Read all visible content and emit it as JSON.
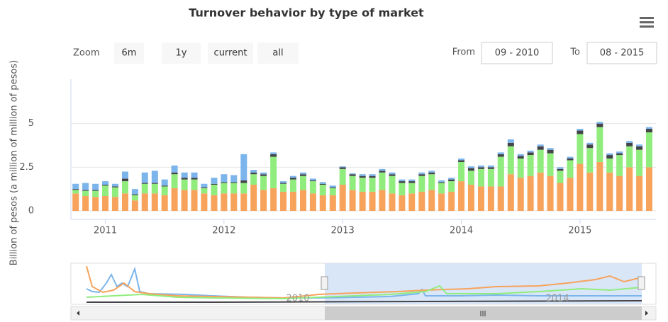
{
  "chart_data": {
    "type": "stacked_bar",
    "title": "Turnover behavior by type of market",
    "y_label": "Billion of pesos (a million of million of pesos)",
    "zoom_label": "Zoom",
    "zoom_buttons": [
      "6m",
      "1y",
      "current",
      "all"
    ],
    "from_label": "From",
    "from_value": "09 - 2010",
    "to_label": "To",
    "to_value": "08 - 2015",
    "navigator_labels": [
      "2010",
      "2014"
    ],
    "x": [
      2010.75,
      2010.833,
      2010.917,
      2011.0,
      2011.083,
      2011.167,
      2011.25,
      2011.333,
      2011.417,
      2011.5,
      2011.583,
      2011.667,
      2011.75,
      2011.833,
      2011.917,
      2012.0,
      2012.083,
      2012.167,
      2012.25,
      2012.333,
      2012.417,
      2012.5,
      2012.583,
      2012.667,
      2012.75,
      2012.833,
      2012.917,
      2013.0,
      2013.083,
      2013.167,
      2013.25,
      2013.333,
      2013.417,
      2013.5,
      2013.583,
      2013.667,
      2013.75,
      2013.833,
      2013.917,
      2014.0,
      2014.083,
      2014.167,
      2014.25,
      2014.333,
      2014.417,
      2014.5,
      2014.583,
      2014.667,
      2014.75,
      2014.833,
      2014.917,
      2015.0,
      2015.083,
      2015.167,
      2015.25,
      2015.333,
      2015.417,
      2015.5,
      2015.583
    ],
    "xlim": [
      2010.71,
      2015.64
    ],
    "xticks": [
      2011,
      2012,
      2013,
      2014,
      2015
    ],
    "ylim": [
      0,
      7.5
    ],
    "yticks": [
      0,
      2.5,
      5
    ],
    "grid": true,
    "series": [
      {
        "color": "#f7a35c",
        "values": [
          1.0,
          0.85,
          0.8,
          0.85,
          0.8,
          1.0,
          0.6,
          1.0,
          1.0,
          0.9,
          1.3,
          1.2,
          1.2,
          1.0,
          0.9,
          1.0,
          1.0,
          1.0,
          1.5,
          1.2,
          1.3,
          1.1,
          1.1,
          1.2,
          1.0,
          0.9,
          0.9,
          1.5,
          1.2,
          1.1,
          1.1,
          1.2,
          1.0,
          0.9,
          1.0,
          1.1,
          1.2,
          1.0,
          1.1,
          1.7,
          1.5,
          1.4,
          1.4,
          1.4,
          2.1,
          1.9,
          2.0,
          2.2,
          2.0,
          1.6,
          1.9,
          2.7,
          2.2,
          2.8,
          2.2,
          2.0,
          2.5,
          2.0,
          2.5
        ]
      },
      {
        "color": "#90ed7d",
        "values": [
          0.2,
          0.3,
          0.35,
          0.6,
          0.55,
          0.7,
          0.3,
          0.55,
          0.55,
          0.5,
          0.8,
          0.6,
          0.6,
          0.3,
          0.6,
          0.6,
          0.6,
          0.6,
          0.6,
          0.8,
          1.8,
          0.45,
          0.7,
          0.8,
          0.7,
          0.6,
          0.4,
          0.9,
          0.8,
          0.8,
          0.8,
          1.0,
          1.0,
          0.7,
          0.6,
          0.9,
          0.9,
          0.6,
          0.6,
          1.1,
          0.8,
          1.0,
          1.0,
          1.7,
          1.6,
          1.1,
          1.2,
          1.3,
          1.3,
          0.7,
          1.0,
          1.7,
          1.4,
          2.0,
          0.8,
          1.2,
          1.2,
          1.5,
          2.0
        ]
      },
      {
        "color": "#434348",
        "values": [
          0.05,
          0.05,
          0.05,
          0.05,
          0.05,
          0.15,
          0.05,
          0.05,
          0.05,
          0.05,
          0.1,
          0.1,
          0.1,
          0.05,
          0.05,
          0.05,
          0.05,
          0.15,
          0.1,
          0.1,
          0.15,
          0.05,
          0.1,
          0.1,
          0.05,
          0.05,
          0.05,
          0.1,
          0.1,
          0.1,
          0.1,
          0.1,
          0.1,
          0.1,
          0.1,
          0.1,
          0.1,
          0.05,
          0.1,
          0.1,
          0.15,
          0.1,
          0.1,
          0.15,
          0.2,
          0.15,
          0.15,
          0.2,
          0.2,
          0.1,
          0.1,
          0.2,
          0.2,
          0.2,
          0.2,
          0.1,
          0.2,
          0.2,
          0.2
        ]
      },
      {
        "color": "#7cb5ec",
        "values": [
          0.3,
          0.4,
          0.35,
          0.2,
          0.15,
          0.4,
          0.3,
          0.6,
          0.7,
          0.35,
          0.4,
          0.3,
          0.3,
          0.2,
          0.35,
          0.45,
          0.4,
          1.5,
          0.15,
          0.1,
          0.1,
          0.1,
          0.1,
          0.1,
          0.1,
          0.1,
          0.1,
          0.05,
          0.05,
          0.1,
          0.1,
          0.1,
          0.1,
          0.1,
          0.1,
          0.1,
          0.1,
          0.1,
          0.1,
          0.1,
          0.1,
          0.1,
          0.1,
          0.1,
          0.2,
          0.1,
          0.1,
          0.1,
          0.1,
          0.1,
          0.1,
          0.1,
          0.1,
          0.1,
          0.1,
          0.1,
          0.1,
          0.1,
          0.1
        ]
      }
    ]
  }
}
